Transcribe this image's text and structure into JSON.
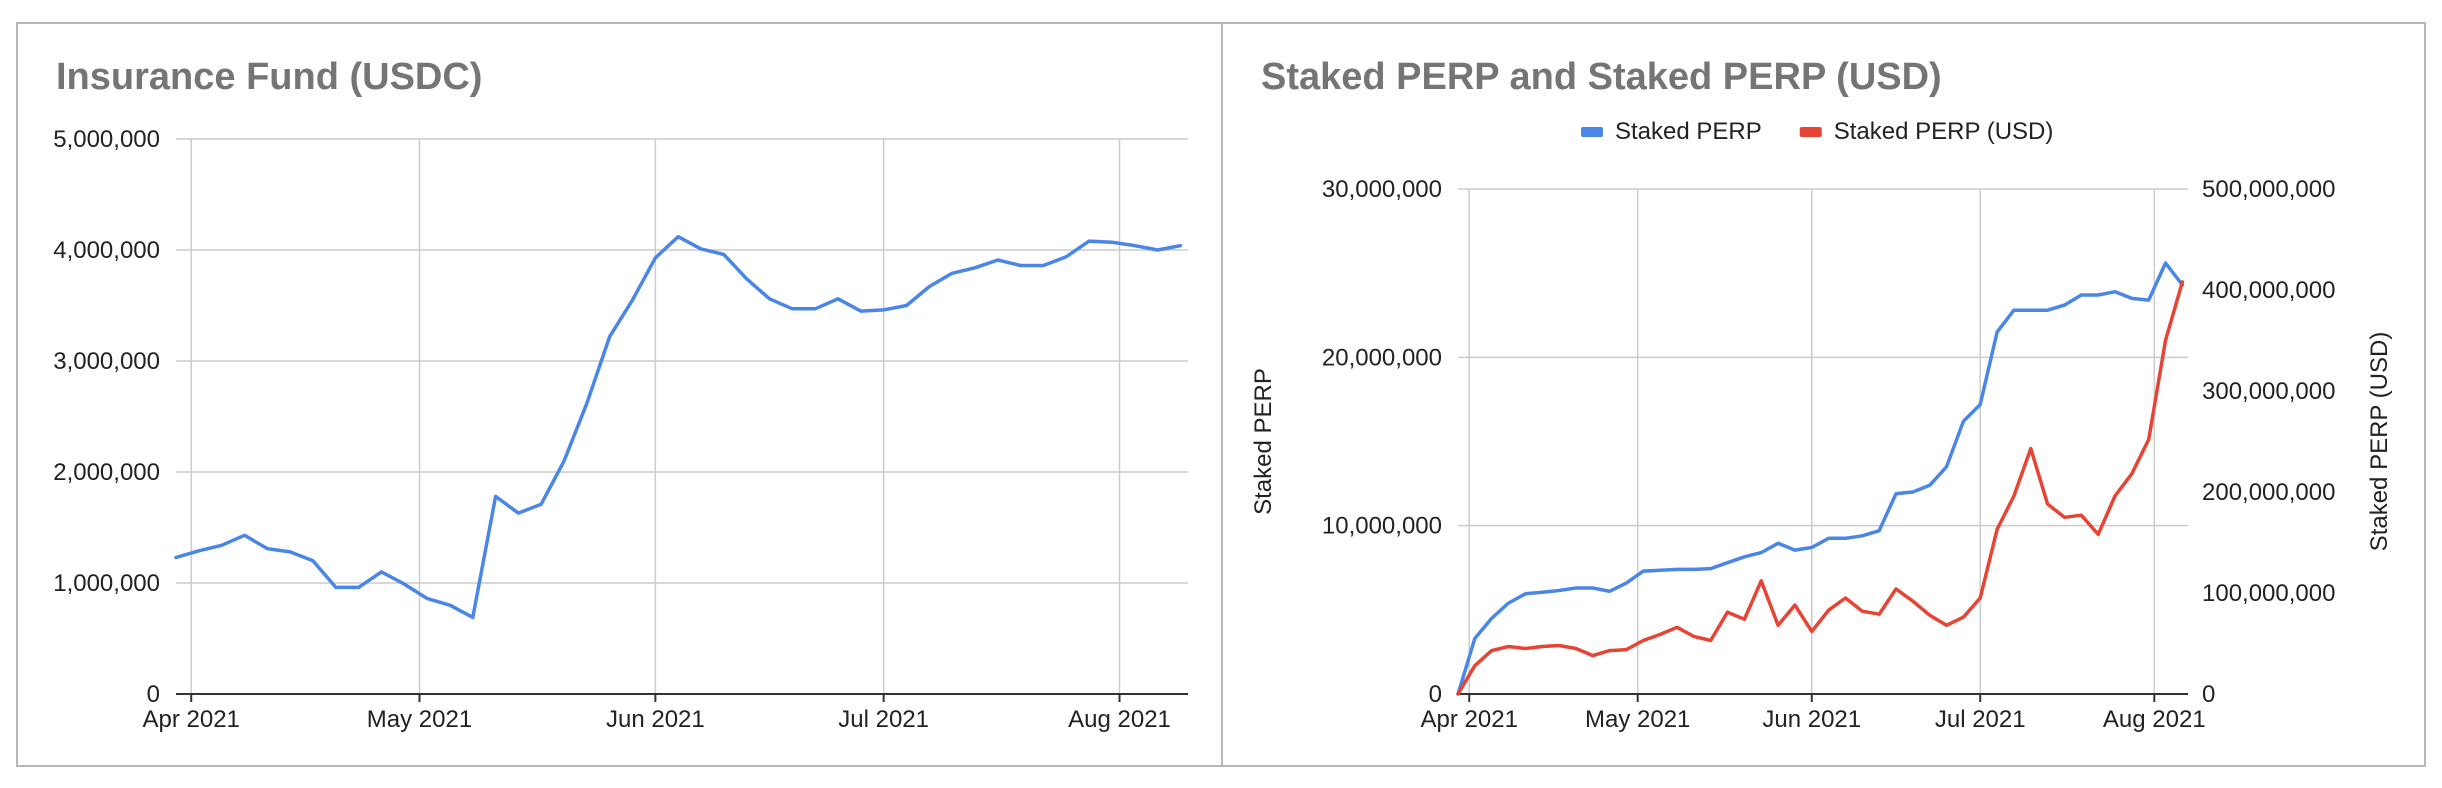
{
  "chart_data": [
    {
      "type": "line",
      "title": "Insurance Fund (USDC)",
      "xlabel": "",
      "ylabel": "",
      "x_ticks": [
        "Apr 2021",
        "May 2021",
        "Jun 2021",
        "Jul 2021",
        "Aug 2021"
      ],
      "x_tick_days": [
        0,
        30,
        61,
        91,
        122
      ],
      "x_range_days": [
        -2,
        131
      ],
      "ylim": [
        0,
        5000000
      ],
      "y_ticks": [
        "0",
        "1,000,000",
        "2,000,000",
        "3,000,000",
        "4,000,000",
        "5,000,000"
      ],
      "y_tick_values": [
        0,
        1000000,
        2000000,
        3000000,
        4000000,
        5000000
      ],
      "grid": true,
      "series": [
        {
          "name": "Insurance Fund (USDC)",
          "color": "#4a86e8",
          "x_days": [
            -2,
            1,
            4,
            7,
            10,
            13,
            16,
            19,
            22,
            25,
            28,
            31,
            34,
            37,
            40,
            43,
            46,
            49,
            52,
            55,
            58,
            61,
            64,
            67,
            70,
            73,
            76,
            79,
            82,
            85,
            88,
            91,
            94,
            97,
            100,
            103,
            106,
            109,
            112,
            115,
            118,
            121,
            124,
            127,
            130
          ],
          "values": [
            1230000,
            1290000,
            1340000,
            1430000,
            1310000,
            1280000,
            1200000,
            960000,
            960000,
            1100000,
            990000,
            860000,
            800000,
            690000,
            1780000,
            1630000,
            1710000,
            2100000,
            2620000,
            3220000,
            3550000,
            3930000,
            4120000,
            4010000,
            3960000,
            3740000,
            3560000,
            3470000,
            3470000,
            3560000,
            3450000,
            3460000,
            3500000,
            3670000,
            3790000,
            3840000,
            3910000,
            3860000,
            3860000,
            3940000,
            4080000,
            4070000,
            4040000,
            4000000,
            4040000
          ]
        }
      ]
    },
    {
      "type": "line",
      "title": "Staked PERP and Staked PERP (USD)",
      "xlabel": "",
      "ylabel": "Staked PERP",
      "ylabel_right": "Staked PERP (USD)",
      "x_ticks": [
        "Apr 2021",
        "May 2021",
        "Jun 2021",
        "Jul 2021",
        "Aug 2021"
      ],
      "x_tick_days": [
        0,
        30,
        61,
        91,
        122
      ],
      "x_range_days": [
        -2,
        128
      ],
      "ylim": [
        0,
        30000000
      ],
      "y_ticks": [
        "0",
        "10,000,000",
        "20,000,000",
        "30,000,000"
      ],
      "y_tick_values": [
        0,
        10000000,
        20000000,
        30000000
      ],
      "ylim_right": [
        0,
        500000000
      ],
      "y_ticks_right": [
        "0",
        "100,000,000",
        "200,000,000",
        "300,000,000",
        "400,000,000",
        "500,000,000"
      ],
      "y_tick_values_right": [
        0,
        100000000,
        200000000,
        300000000,
        400000000,
        500000000
      ],
      "legend": [
        "Staked PERP",
        "Staked PERP (USD)"
      ],
      "legend_position": "top",
      "grid": true,
      "series": [
        {
          "name": "Staked PERP",
          "axis": "left",
          "color": "#4a86e8",
          "x_days": [
            -2,
            1,
            4,
            7,
            10,
            13,
            16,
            19,
            22,
            25,
            28,
            31,
            34,
            37,
            40,
            43,
            46,
            49,
            52,
            55,
            58,
            61,
            64,
            67,
            70,
            73,
            76,
            79,
            82,
            85,
            88,
            91,
            94,
            97,
            100,
            103,
            106,
            109,
            112,
            115,
            118,
            121,
            124,
            127
          ],
          "values": [
            0,
            3300000,
            4500000,
            5400000,
            5950000,
            6050000,
            6150000,
            6300000,
            6300000,
            6100000,
            6600000,
            7300000,
            7350000,
            7400000,
            7400000,
            7450000,
            7800000,
            8150000,
            8400000,
            8950000,
            8550000,
            8700000,
            9250000,
            9250000,
            9400000,
            9700000,
            11900000,
            12000000,
            12400000,
            13500000,
            16200000,
            17200000,
            21500000,
            22800000,
            22800000,
            22800000,
            23100000,
            23700000,
            23700000,
            23900000,
            23500000,
            23400000,
            25600000,
            24300000
          ]
        },
        {
          "name": "Staked PERP (USD)",
          "axis": "right",
          "color": "#e64435",
          "x_days": [
            -2,
            1,
            4,
            7,
            10,
            13,
            16,
            19,
            22,
            25,
            28,
            31,
            34,
            37,
            40,
            43,
            46,
            49,
            52,
            55,
            58,
            61,
            64,
            67,
            70,
            73,
            76,
            79,
            82,
            85,
            88,
            91,
            94,
            97,
            100,
            103,
            106,
            109,
            112,
            115,
            118,
            121,
            124,
            127
          ],
          "values": [
            0,
            28000000,
            43000000,
            47000000,
            45000000,
            47000000,
            48000000,
            45000000,
            38000000,
            43000000,
            44000000,
            53000000,
            59000000,
            66000000,
            57000000,
            53000000,
            81000000,
            74000000,
            112000000,
            68000000,
            88000000,
            62000000,
            83000000,
            95000000,
            82000000,
            79000000,
            104000000,
            92000000,
            78000000,
            68000000,
            76000000,
            95000000,
            163000000,
            196000000,
            243000000,
            188000000,
            175000000,
            177000000,
            158000000,
            196000000,
            218000000,
            252000000,
            350000000,
            408000000
          ]
        }
      ]
    }
  ]
}
